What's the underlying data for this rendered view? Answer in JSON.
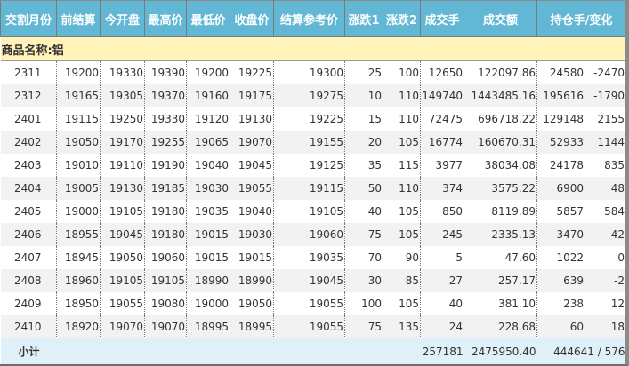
{
  "headers": [
    "交割月份",
    "前结算",
    "今开盘",
    "最高价",
    "最低价",
    "收盘价",
    "结算参考价",
    "涨跌1",
    "涨跌2",
    "成交手",
    "成交额",
    "持仓手/变化"
  ],
  "section_label": "商品名称:铝",
  "rows": [
    [
      "2311",
      "19200",
      "19330",
      "19390",
      "19200",
      "19225",
      "19300",
      "25",
      "100",
      "12650",
      "122097.86",
      "24580",
      "-2470"
    ],
    [
      "2312",
      "19165",
      "19305",
      "19370",
      "19160",
      "19175",
      "19275",
      "10",
      "110",
      "149740",
      "1443485.16",
      "195616",
      "-1790"
    ],
    [
      "2401",
      "19115",
      "19250",
      "19330",
      "19120",
      "19130",
      "19225",
      "15",
      "110",
      "72475",
      "696718.22",
      "129148",
      "2155"
    ],
    [
      "2402",
      "19050",
      "19170",
      "19255",
      "19065",
      "19070",
      "19155",
      "20",
      "105",
      "16774",
      "160670.31",
      "52933",
      "1144"
    ],
    [
      "2403",
      "19010",
      "19110",
      "19190",
      "19040",
      "19045",
      "19125",
      "35",
      "115",
      "3977",
      "38034.08",
      "24178",
      "835"
    ],
    [
      "2404",
      "19005",
      "19130",
      "19185",
      "19030",
      "19055",
      "19115",
      "50",
      "110",
      "374",
      "3575.22",
      "6900",
      "48"
    ],
    [
      "2405",
      "19000",
      "19105",
      "19180",
      "19035",
      "19040",
      "19105",
      "40",
      "105",
      "850",
      "8119.89",
      "5857",
      "584"
    ],
    [
      "2406",
      "18955",
      "19045",
      "19180",
      "19015",
      "19030",
      "19060",
      "75",
      "105",
      "245",
      "2335.13",
      "3470",
      "42"
    ],
    [
      "2407",
      "18945",
      "19050",
      "19060",
      "19015",
      "19015",
      "19035",
      "70",
      "90",
      "5",
      "47.60",
      "1022",
      "0"
    ],
    [
      "2408",
      "18960",
      "19105",
      "19105",
      "18990",
      "18990",
      "19045",
      "30",
      "85",
      "27",
      "257.17",
      "639",
      "-2"
    ],
    [
      "2409",
      "18950",
      "19055",
      "19080",
      "19000",
      "19050",
      "19055",
      "100",
      "105",
      "40",
      "381.10",
      "238",
      "12"
    ],
    [
      "2410",
      "18920",
      "19070",
      "19070",
      "18995",
      "18995",
      "19055",
      "75",
      "135",
      "24",
      "228.68",
      "60",
      "18"
    ]
  ],
  "subtotal": {
    "label": "小计",
    "volume": "257181",
    "turnover": "2475950.40",
    "open_interest": "444641 / 576"
  }
}
